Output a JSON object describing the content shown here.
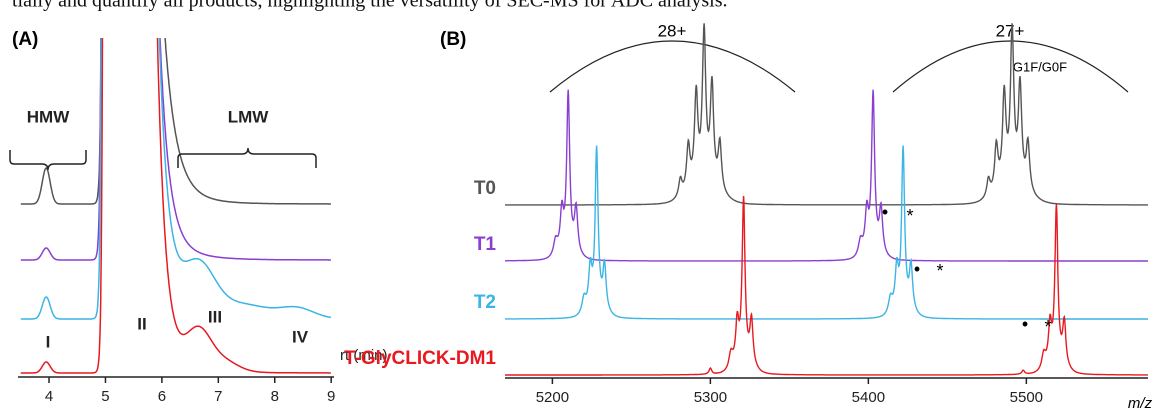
{
  "caption": "tially and quantify all products, highlighting the versatility of SEC-MS for ADC analysis.",
  "panel_a": {
    "label": "(A)",
    "x_label": "rt (min)",
    "xlim": [
      3.45,
      9.05
    ],
    "xticks": [
      4,
      5,
      6,
      7,
      8,
      9
    ],
    "groups": [
      "HMW",
      "LMW"
    ],
    "peaks": [
      "I",
      "II",
      "III",
      "IV"
    ]
  },
  "panel_b": {
    "label": "(B)",
    "x_label": "m/z",
    "xlim": [
      5170,
      5577
    ],
    "xticks": [
      5200,
      5300,
      5400,
      5500
    ],
    "charge_states": [
      "28+",
      "27+"
    ],
    "glycoform": "G1F/G0F",
    "traces": [
      {
        "name": "T0",
        "color": "#555555"
      },
      {
        "name": "T1",
        "color": "#8a3fd1"
      },
      {
        "name": "T2",
        "color": "#3cb4e6"
      },
      {
        "name": "T-GlyCLICK-DM1",
        "color": "#e8191f"
      }
    ],
    "markers": [
      "•",
      "*"
    ]
  }
}
